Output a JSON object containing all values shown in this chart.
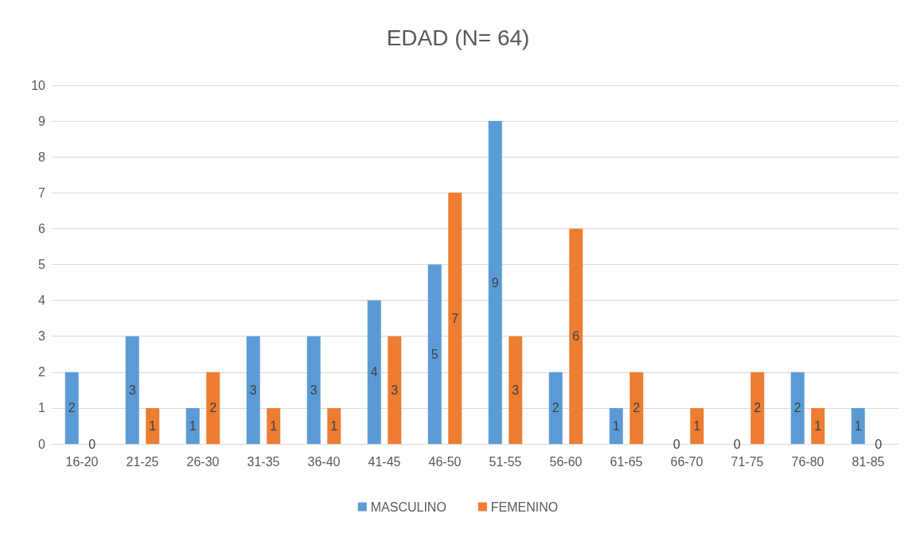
{
  "chart_data": {
    "type": "bar",
    "title": "EDAD (N= 64)",
    "categories": [
      "16-20",
      "21-25",
      "26-30",
      "31-35",
      "36-40",
      "41-45",
      "46-50",
      "51-55",
      "56-60",
      "61-65",
      "66-70",
      "71-75",
      "76-80",
      "81-85"
    ],
    "series": [
      {
        "name": "MASCULINO",
        "color": "#5b9bd5",
        "values": [
          2,
          3,
          1,
          3,
          3,
          4,
          5,
          9,
          2,
          1,
          0,
          0,
          2,
          1
        ]
      },
      {
        "name": "FEMENINO",
        "color": "#ed7d31",
        "values": [
          0,
          1,
          2,
          1,
          1,
          3,
          7,
          3,
          6,
          2,
          1,
          2,
          1,
          0
        ]
      }
    ],
    "ylim": [
      0,
      10
    ],
    "yticks": [
      0,
      1,
      2,
      3,
      4,
      5,
      6,
      7,
      8,
      9,
      10
    ],
    "grid": "y",
    "legend": "bottom",
    "data_labels": true
  }
}
